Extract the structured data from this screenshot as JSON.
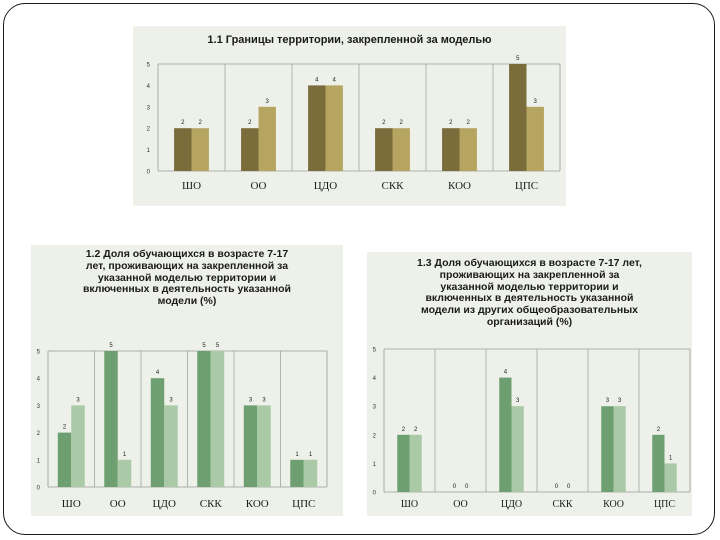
{
  "colors": {
    "panel_bg": "#eef1ea",
    "chart1_series_a": "#7b6c3c",
    "chart1_series_b": "#b5a560",
    "chart2_series_a": "#6d9f70",
    "chart2_series_b": "#a9c9a7",
    "grid": "#9a9a9a"
  },
  "chart_data": [
    {
      "type": "bar",
      "title": "1.1 Границы территории, закрепленной за моделью",
      "categories": [
        "ШО",
        "ОО",
        "ЦДО",
        "СКК",
        "КОО",
        "ЦПС"
      ],
      "series": [
        {
          "values": [
            2,
            2,
            4,
            2,
            2,
            5
          ]
        },
        {
          "values": [
            2,
            3,
            4,
            2,
            2,
            3
          ]
        }
      ],
      "ylim": [
        0,
        5
      ],
      "yticks": [
        "0",
        "1",
        "2",
        "3",
        "4",
        "5"
      ],
      "xlabel": "",
      "ylabel": "",
      "grid": "vertical category separators"
    },
    {
      "type": "bar",
      "title": "1.2 Доля обучающихся в возрасте 7-17\nлет, проживающих на закрепленной за\nуказанной моделью территории и\nвключенных в деятельность указанной\nмодели (%)",
      "categories": [
        "ШО",
        "ОО",
        "ЦДО",
        "СКК",
        "КОО",
        "ЦПС"
      ],
      "series": [
        {
          "values": [
            2,
            5,
            4,
            5,
            3,
            1
          ]
        },
        {
          "values": [
            3,
            1,
            3,
            5,
            3,
            1
          ]
        }
      ],
      "ylim": [
        0,
        5
      ],
      "yticks": [
        "0",
        "1",
        "2",
        "3",
        "4",
        "5"
      ],
      "xlabel": "",
      "ylabel": "",
      "grid": "vertical category separators"
    },
    {
      "type": "bar",
      "title": "1.3 Доля обучающихся в возрасте 7-17 лет,\nпроживающих на закрепленной за\nуказанной моделью территории и\nвключенных в деятельность указанной\nмодели из других общеобразовательных\nорганизаций (%)",
      "categories": [
        "ШО",
        "ОО",
        "ЦДО",
        "СКК",
        "КОО",
        "ЦПС"
      ],
      "series": [
        {
          "values": [
            2,
            0,
            4,
            0,
            3,
            2
          ]
        },
        {
          "values": [
            2,
            0,
            3,
            0,
            3,
            1
          ]
        }
      ],
      "ylim": [
        0,
        5
      ],
      "yticks": [
        "0",
        "1",
        "2",
        "3",
        "4",
        "5"
      ],
      "xlabel": "",
      "ylabel": "",
      "grid": "vertical category separators"
    }
  ]
}
